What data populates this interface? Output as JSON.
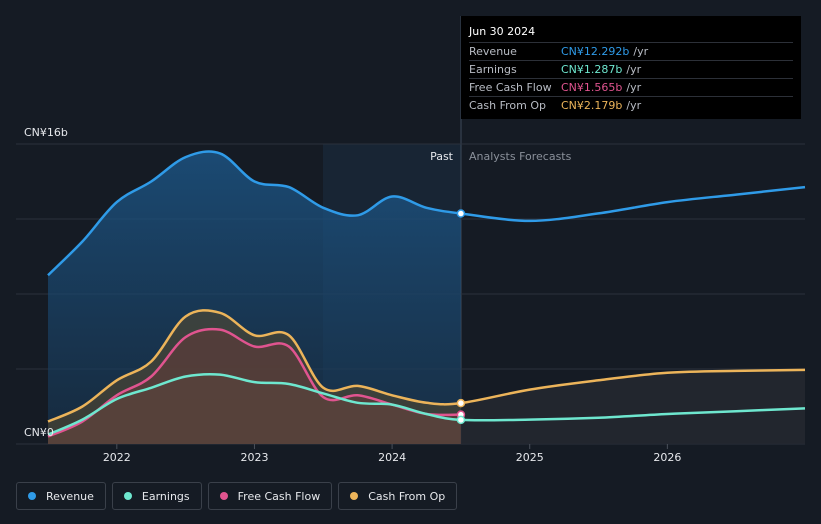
{
  "tooltip": {
    "date": "Jun 30 2024",
    "rows": [
      {
        "label": "Revenue",
        "value": "CN¥12.292b",
        "unit": "/yr",
        "color": "#2f9be8"
      },
      {
        "label": "Earnings",
        "value": "CN¥1.287b",
        "unit": "/yr",
        "color": "#6ee7cf"
      },
      {
        "label": "Free Cash Flow",
        "value": "CN¥1.565b",
        "unit": "/yr",
        "color": "#e0548f"
      },
      {
        "label": "Cash From Op",
        "value": "CN¥2.179b",
        "unit": "/yr",
        "color": "#ecb45a"
      }
    ]
  },
  "legend": [
    {
      "label": "Revenue",
      "color": "#2f9be8"
    },
    {
      "label": "Earnings",
      "color": "#6ee7cf"
    },
    {
      "label": "Free Cash Flow",
      "color": "#e0548f"
    },
    {
      "label": "Cash From Op",
      "color": "#ecb45a"
    }
  ],
  "chart_data": {
    "type": "area",
    "y_unit": "CN¥ billions",
    "ylim": [
      0,
      16
    ],
    "y_tick_labels": [
      "CN¥16b",
      "CN¥0"
    ],
    "x_tick_labels": [
      "2022",
      "2023",
      "2024",
      "2025",
      "2026"
    ],
    "divider_labels": {
      "past": "Past",
      "forecast": "Analysts Forecasts"
    },
    "divider_x": 2024.5,
    "series": [
      {
        "name": "Revenue",
        "color": "#2f9be8",
        "x": [
          2021.5,
          2021.75,
          2022.0,
          2022.25,
          2022.5,
          2022.75,
          2023.0,
          2023.25,
          2023.5,
          2023.75,
          2024.0,
          2024.25,
          2024.5,
          2025.0,
          2025.5,
          2026.0,
          2026.5,
          2027.0
        ],
        "values": [
          9.0,
          10.8,
          12.9,
          14.0,
          15.3,
          15.5,
          14.0,
          13.7,
          12.6,
          12.2,
          13.2,
          12.6,
          12.292,
          11.9,
          12.3,
          12.9,
          13.3,
          13.7
        ]
      },
      {
        "name": "Earnings",
        "color": "#6ee7cf",
        "x": [
          2021.5,
          2021.75,
          2022.0,
          2022.25,
          2022.5,
          2022.75,
          2023.0,
          2023.25,
          2023.5,
          2023.75,
          2024.0,
          2024.25,
          2024.5,
          2025.0,
          2025.5,
          2026.0,
          2026.5,
          2027.0
        ],
        "values": [
          0.5,
          1.3,
          2.4,
          3.0,
          3.6,
          3.7,
          3.3,
          3.2,
          2.7,
          2.2,
          2.1,
          1.6,
          1.287,
          1.3,
          1.4,
          1.6,
          1.75,
          1.9
        ]
      },
      {
        "name": "Free Cash Flow",
        "color": "#e0548f",
        "x": [
          2021.5,
          2021.75,
          2022.0,
          2022.25,
          2022.5,
          2022.75,
          2023.0,
          2023.25,
          2023.5,
          2023.75,
          2024.0,
          2024.25,
          2024.5
        ],
        "values": [
          0.4,
          1.2,
          2.6,
          3.6,
          5.7,
          6.1,
          5.2,
          5.2,
          2.5,
          2.6,
          2.1,
          1.6,
          1.565
        ]
      },
      {
        "name": "Cash From Op",
        "color": "#ecb45a",
        "x": [
          2021.5,
          2021.75,
          2022.0,
          2022.25,
          2022.5,
          2022.75,
          2023.0,
          2023.25,
          2023.5,
          2023.75,
          2024.0,
          2024.25,
          2024.5,
          2025.0,
          2025.5,
          2026.0,
          2026.5,
          2027.0
        ],
        "values": [
          1.2,
          2.0,
          3.4,
          4.4,
          6.8,
          7.0,
          5.8,
          5.8,
          3.0,
          3.1,
          2.6,
          2.2,
          2.179,
          2.9,
          3.4,
          3.8,
          3.9,
          3.95
        ]
      }
    ]
  }
}
